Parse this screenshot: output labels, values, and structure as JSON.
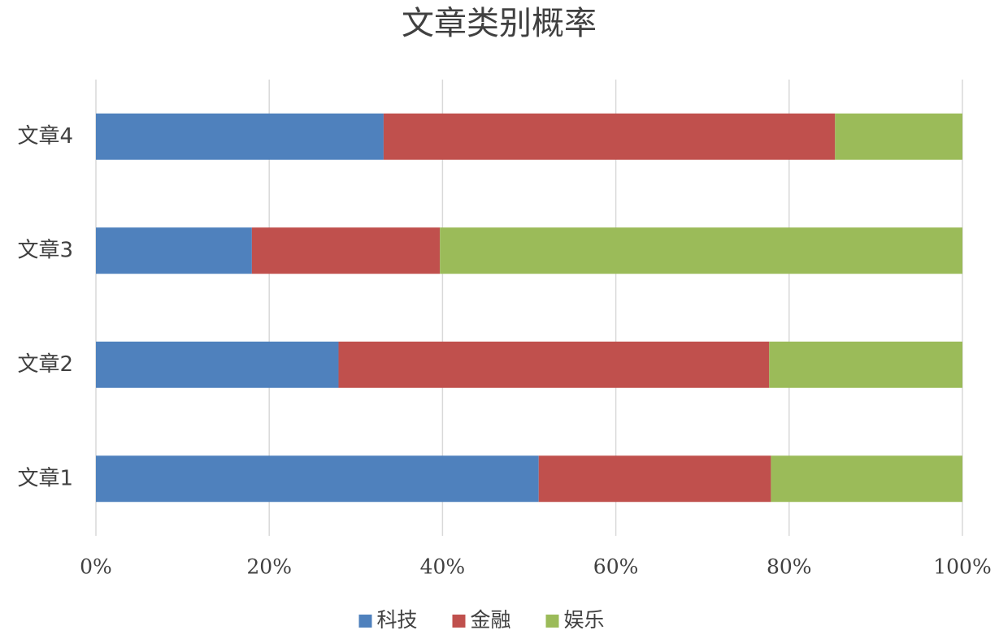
{
  "chart_data": {
    "type": "bar",
    "orientation": "horizontal",
    "stacked": true,
    "title": "文章类别概率",
    "categories": [
      "文章1",
      "文章2",
      "文章3",
      "文章4"
    ],
    "series": [
      {
        "name": "科技",
        "color": "#4f81bd",
        "values": [
          51.1,
          28.0,
          18.0,
          33.2
        ]
      },
      {
        "name": "金融",
        "color": "#c0504d",
        "values": [
          26.8,
          49.7,
          21.7,
          52.1
        ]
      },
      {
        "name": "娱乐",
        "color": "#9bbb59",
        "values": [
          22.1,
          22.3,
          60.3,
          14.7
        ]
      }
    ],
    "xlim": [
      0,
      100
    ],
    "xticks": [
      {
        "value": 0,
        "label": "0%"
      },
      {
        "value": 20,
        "label": "20%"
      },
      {
        "value": 40,
        "label": "40%"
      },
      {
        "value": 60,
        "label": "60%"
      },
      {
        "value": 80,
        "label": "80%"
      },
      {
        "value": 100,
        "label": "100%"
      }
    ],
    "grid": true,
    "legend": "bottom"
  }
}
